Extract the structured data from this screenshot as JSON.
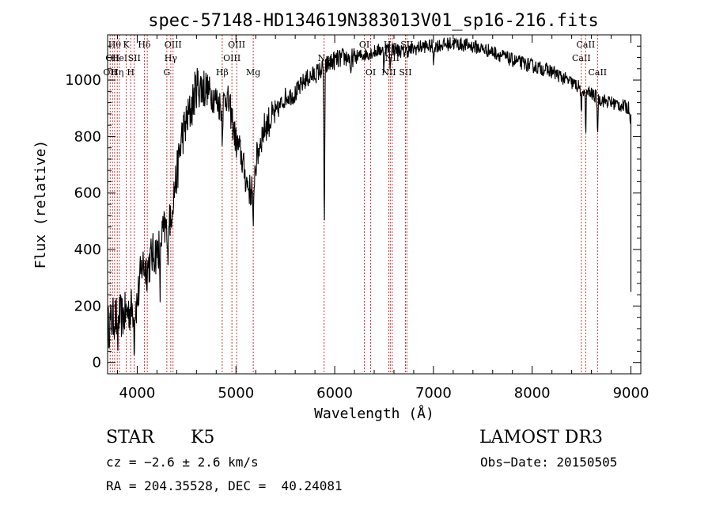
{
  "chart_data": {
    "type": "line",
    "title": "spec-57148-HD134619N383013V01_sp16-216.fits",
    "xlabel": "Wavelength (Å)",
    "ylabel": "Flux (relative)",
    "xlim": [
      3700,
      9100
    ],
    "ylim": [
      -40,
      1160
    ],
    "xticks": [
      4000,
      5000,
      6000,
      7000,
      8000,
      9000
    ],
    "yticks": [
      0,
      200,
      400,
      600,
      800,
      1000
    ],
    "grid": false,
    "series": [
      {
        "name": "flux",
        "anchors_x": [
          3700,
          3750,
          3800,
          3850,
          3900,
          3950,
          4000,
          4050,
          4100,
          4150,
          4200,
          4250,
          4300,
          4350,
          4400,
          4450,
          4500,
          4550,
          4600,
          4700,
          4800,
          4860,
          4900,
          4950,
          5000,
          5050,
          5100,
          5150,
          5200,
          5250,
          5300,
          5400,
          5500,
          5600,
          5700,
          5800,
          5880,
          5950,
          6000,
          6100,
          6200,
          6300,
          6400,
          6500,
          6600,
          6700,
          6800,
          6900,
          7000,
          7200,
          7400,
          7600,
          7800,
          8000,
          8200,
          8400,
          8500,
          8600,
          8700,
          8800,
          8900,
          8980,
          9000
        ],
        "anchors_y": [
          120,
          150,
          170,
          160,
          180,
          190,
          210,
          350,
          330,
          380,
          390,
          450,
          480,
          560,
          660,
          800,
          850,
          900,
          980,
          970,
          930,
          900,
          950,
          880,
          780,
          740,
          650,
          600,
          700,
          790,
          840,
          880,
          940,
          950,
          1000,
          1020,
          1040,
          1060,
          1070,
          1080,
          1080,
          1090,
          1100,
          1110,
          1110,
          1100,
          1110,
          1120,
          1120,
          1130,
          1120,
          1100,
          1070,
          1050,
          1030,
          990,
          970,
          950,
          930,
          920,
          910,
          900,
          860
        ],
        "noise_amplitude": 25
      }
    ],
    "absorption_features": [
      {
        "x": 3800,
        "depth": 150
      },
      {
        "x": 3970,
        "depth": 120
      },
      {
        "x": 4230,
        "depth": 190
      },
      {
        "x": 4307,
        "depth": 150
      },
      {
        "x": 4340,
        "depth": 80
      },
      {
        "x": 4861,
        "depth": 80
      },
      {
        "x": 5175,
        "depth": 220
      },
      {
        "x": 5895,
        "depth": 560
      },
      {
        "x": 6163,
        "depth": 90
      },
      {
        "x": 6497,
        "depth": 70
      },
      {
        "x": 6563,
        "depth": 70
      },
      {
        "x": 7000,
        "depth": 60
      },
      {
        "x": 8498,
        "depth": 110
      },
      {
        "x": 8542,
        "depth": 140
      },
      {
        "x": 8662,
        "depth": 120
      }
    ],
    "line_markers": [
      {
        "x": 3726,
        "label": "OII",
        "row": 2
      },
      {
        "x": 3750,
        "label": "OII",
        "row": 1
      },
      {
        "x": 3771,
        "label": "Hθ",
        "row": 0
      },
      {
        "x": 3798,
        "label": "Hη",
        "row": 2
      },
      {
        "x": 3820,
        "label": "HeI",
        "row": 1
      },
      {
        "x": 3889,
        "label": "K",
        "row": 0
      },
      {
        "x": 3934,
        "label": "H",
        "row": 2
      },
      {
        "x": 3970,
        "label": "SII",
        "row": 1
      },
      {
        "x": 4072,
        "label": "Hδ",
        "row": 0
      },
      {
        "x": 4102,
        "label": "",
        "row": 0
      },
      {
        "x": 4300,
        "label": "G",
        "row": 2
      },
      {
        "x": 4340,
        "label": "Hγ",
        "row": 1
      },
      {
        "x": 4363,
        "label": "OIII",
        "row": 0
      },
      {
        "x": 4861,
        "label": "Hβ",
        "row": 2
      },
      {
        "x": 4959,
        "label": "OIII",
        "row": 1
      },
      {
        "x": 5007,
        "label": "OIII",
        "row": 0
      },
      {
        "x": 5175,
        "label": "Mg",
        "row": 2
      },
      {
        "x": 5893,
        "label": "Na",
        "row": 1
      },
      {
        "x": 6300,
        "label": "OI",
        "row": 0
      },
      {
        "x": 6364,
        "label": "OI",
        "row": 2
      },
      {
        "x": 6548,
        "label": "NII",
        "row": 2
      },
      {
        "x": 6563,
        "label": "Hα",
        "row": 0
      },
      {
        "x": 6583,
        "label": "NII",
        "row": 1
      },
      {
        "x": 6716,
        "label": "SII",
        "row": 2
      },
      {
        "x": 6731,
        "label": "SII",
        "row": 0
      },
      {
        "x": 8498,
        "label": "CaII",
        "row": 1
      },
      {
        "x": 8542,
        "label": "CaII",
        "row": 0
      },
      {
        "x": 8662,
        "label": "CaII",
        "row": 2
      }
    ],
    "marker_color": "#cc2222"
  },
  "footer": {
    "object_class": "STAR",
    "subclass": "K5",
    "survey": "LAMOST DR3",
    "cz": "cz = −2.6 ± 2.6 km/s",
    "obs_date": "Obs−Date: 20150505",
    "coords": "RA = 204.35528, DEC =  40.24081"
  }
}
